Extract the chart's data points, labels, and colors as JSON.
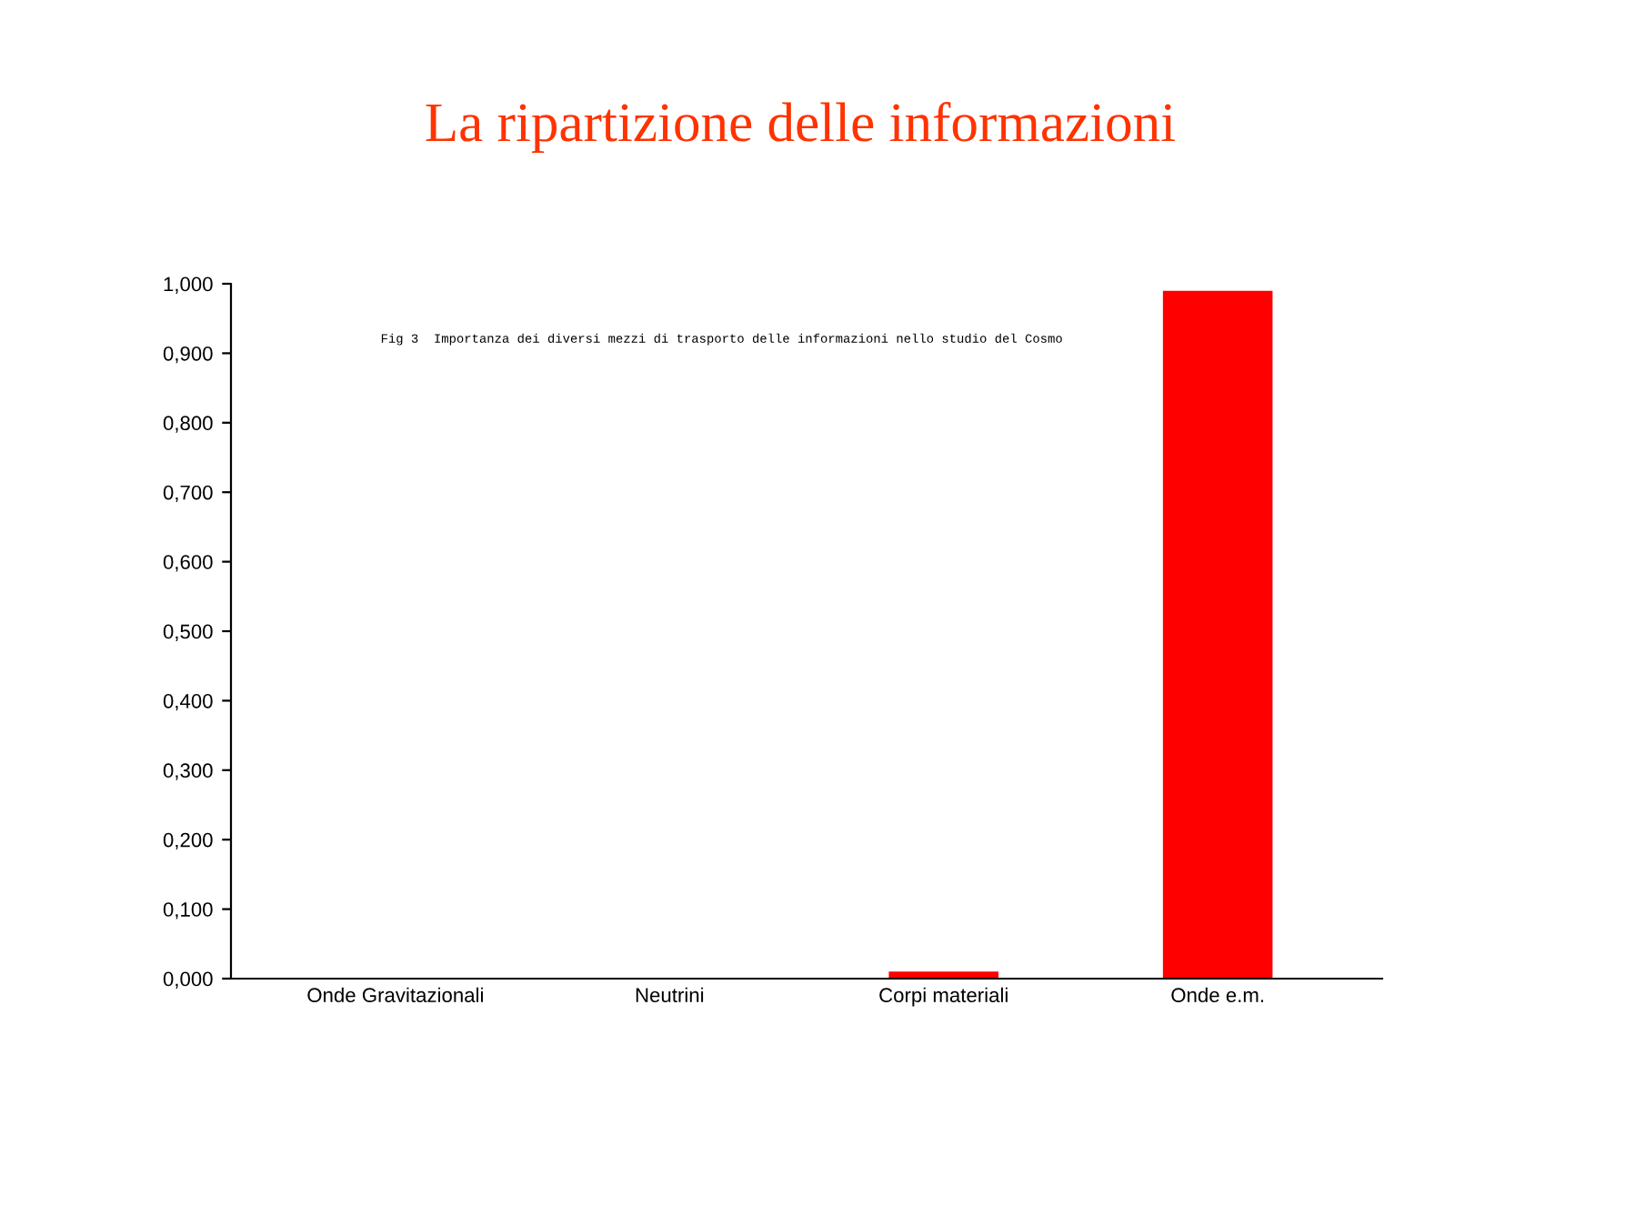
{
  "chart_data": {
    "type": "bar",
    "title": "La ripartizione delle informazioni",
    "annotations": [
      "Fig 3  Importanza dei diversi mezzi di trasporto delle informazioni nello studio del Cosmo"
    ],
    "categories": [
      "Onde Gravitazionali",
      "Neutrini",
      "Corpi materiali",
      "Onde e.m."
    ],
    "values": [
      0.0,
      0.0,
      0.01,
      0.99
    ],
    "color": "#ff0000",
    "ylim": [
      0,
      1
    ],
    "yticks": [
      {
        "value": 0,
        "label": "0,000"
      },
      {
        "value": 0.1,
        "label": "0,100"
      },
      {
        "value": 0.2,
        "label": "0,200"
      },
      {
        "value": 0.3,
        "label": "0,300"
      },
      {
        "value": 0.4,
        "label": "0,400"
      },
      {
        "value": 0.5,
        "label": "0,500"
      },
      {
        "value": 0.6,
        "label": "0,600"
      },
      {
        "value": 0.7,
        "label": "0,700"
      },
      {
        "value": 0.8,
        "label": "0,800"
      },
      {
        "value": 0.9,
        "label": "0,900"
      },
      {
        "value": 1,
        "label": "1,000"
      }
    ],
    "grid": false
  }
}
